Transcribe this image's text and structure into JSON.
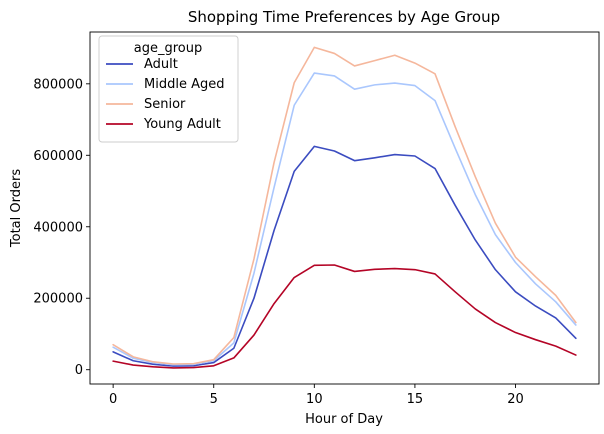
{
  "chart_data": {
    "type": "line",
    "title": "Shopping Time Preferences by Age Group",
    "xlabel": "Hour of Day",
    "ylabel": "Total Orders",
    "xlim": [
      -1.15,
      24.15
    ],
    "ylim": [
      -40000,
      945000
    ],
    "xticks": [
      0,
      5,
      10,
      15,
      20
    ],
    "yticks": [
      0,
      200000,
      400000,
      600000,
      800000
    ],
    "grid": false,
    "legend": {
      "title": "age_group",
      "placement": "top-left"
    },
    "x": [
      0,
      1,
      2,
      3,
      4,
      5,
      6,
      7,
      8,
      9,
      10,
      11,
      12,
      13,
      14,
      15,
      16,
      17,
      18,
      19,
      20,
      21,
      22,
      23
    ],
    "series": [
      {
        "name": "Adult",
        "color": "#3b4cc0",
        "values": [
          50000,
          25000,
          15000,
          10000,
          11000,
          20000,
          60000,
          200000,
          390000,
          555000,
          625000,
          612000,
          585000,
          593000,
          602000,
          598000,
          563000,
          460000,
          363000,
          280000,
          218000,
          178000,
          145000,
          88000
        ]
      },
      {
        "name": "Middle Aged",
        "color": "#aac7fd",
        "values": [
          63000,
          32000,
          20000,
          14000,
          15000,
          25000,
          75000,
          270000,
          510000,
          740000,
          830000,
          822000,
          785000,
          797000,
          802000,
          795000,
          753000,
          620000,
          490000,
          378000,
          300000,
          240000,
          190000,
          125000
        ]
      },
      {
        "name": "Senior",
        "color": "#f5b79c",
        "values": [
          70000,
          36000,
          22000,
          16000,
          17000,
          28000,
          90000,
          310000,
          580000,
          803000,
          902000,
          885000,
          850000,
          865000,
          880000,
          858000,
          828000,
          680000,
          540000,
          410000,
          315000,
          260000,
          208000,
          132000
        ]
      },
      {
        "name": "Young Adult",
        "color": "#b40426",
        "values": [
          24000,
          13000,
          8000,
          5000,
          6000,
          11000,
          33000,
          97000,
          185000,
          258000,
          292000,
          293000,
          275000,
          281000,
          283000,
          280000,
          268000,
          218000,
          170000,
          132000,
          104000,
          84000,
          66000,
          41000
        ]
      }
    ]
  }
}
